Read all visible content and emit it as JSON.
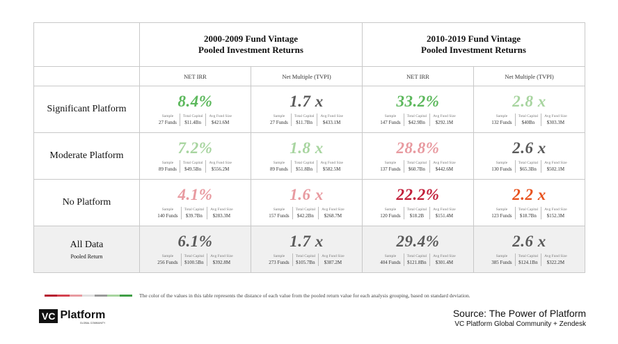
{
  "groups": [
    {
      "line1": "2000-2009 Fund Vintage",
      "line2": "Pooled Investment Returns"
    },
    {
      "line1": "2010-2019 Fund Vintage",
      "line2": "Pooled Investment Returns"
    }
  ],
  "subheaders": [
    "NET IRR",
    "Net Multiple (TVPI)",
    "NET IRR",
    "Net Multiple (TVPI)"
  ],
  "stat_labels": {
    "sample": "Sample",
    "capital": "Total Capital",
    "avg": "Avg Fund Size"
  },
  "colors": {
    "dark_green": "#5cb85c",
    "light_green": "#a8d5a0",
    "gray": "#5a5a5a",
    "light_red": "#e89aa0",
    "red": "#c21f3a",
    "orange": "#e8531f"
  },
  "rows": [
    {
      "label": "Significant Platform",
      "sub": "",
      "cells": [
        {
          "value": "8.4%",
          "tone": "dark_green",
          "sample": "27 Funds",
          "capital": "$11.4Bn",
          "avg": "$421.6M"
        },
        {
          "value": "1.7 x",
          "tone": "gray",
          "sample": "27 Funds",
          "capital": "$11.7Bn",
          "avg": "$433.1M"
        },
        {
          "value": "33.2%",
          "tone": "dark_green",
          "sample": "147 Funds",
          "capital": "$42.9Bn",
          "avg": "$292.1M"
        },
        {
          "value": "2.8 x",
          "tone": "light_green",
          "sample": "132 Funds",
          "capital": "$40Bn",
          "avg": "$303.3M"
        }
      ]
    },
    {
      "label": "Moderate Platform",
      "sub": "",
      "cells": [
        {
          "value": "7.2%",
          "tone": "light_green",
          "sample": "89 Funds",
          "capital": "$49.5Bn",
          "avg": "$556.2M"
        },
        {
          "value": "1.8 x",
          "tone": "light_green",
          "sample": "89 Funds",
          "capital": "$51.8Bn",
          "avg": "$582.5M"
        },
        {
          "value": "28.8%",
          "tone": "light_red",
          "sample": "137 Funds",
          "capital": "$60.7Bn",
          "avg": "$442.6M"
        },
        {
          "value": "2.6 x",
          "tone": "gray",
          "sample": "130 Funds",
          "capital": "$65.3Bn",
          "avg": "$502.1M"
        }
      ]
    },
    {
      "label": "No Platform",
      "sub": "",
      "cells": [
        {
          "value": "4.1%",
          "tone": "light_red",
          "sample": "140 Funds",
          "capital": "$39.7Bn",
          "avg": "$283.3M"
        },
        {
          "value": "1.6 x",
          "tone": "light_red",
          "sample": "157 Funds",
          "capital": "$42.2Bn",
          "avg": "$268.7M"
        },
        {
          "value": "22.2%",
          "tone": "red",
          "sample": "120 Funds",
          "capital": "$18.2B",
          "avg": "$151.4M"
        },
        {
          "value": "2.2 x",
          "tone": "orange",
          "sample": "123 Funds",
          "capital": "$18.7Bn",
          "avg": "$152.3M"
        }
      ]
    },
    {
      "label": "All Data",
      "sub": "Pooled Return",
      "cells": [
        {
          "value": "6.1%",
          "tone": "gray",
          "sample": "256 Funds",
          "capital": "$100.5Bn",
          "avg": "$392.8M"
        },
        {
          "value": "1.7 x",
          "tone": "gray",
          "sample": "273 Funds",
          "capital": "$105.7Bn",
          "avg": "$387.2M"
        },
        {
          "value": "29.4%",
          "tone": "gray",
          "sample": "404 Funds",
          "capital": "$121.8Bn",
          "avg": "$301.4M"
        },
        {
          "value": "2.6 x",
          "tone": "gray",
          "sample": "385 Funds",
          "capital": "$124.1Bn",
          "avg": "$322.2M"
        }
      ]
    }
  ],
  "legend": {
    "colors": [
      "#b5172f",
      "#d4424f",
      "#e89aa0",
      "#e0e0e0",
      "#9a9a9a",
      "#a8d5a0",
      "#3f9e45"
    ],
    "text": "The color of the values in this table represents the distance of each value from the pooled return value for each analysis grouping, based on standard deviation."
  },
  "logo": {
    "box": "VC",
    "name": "Platform",
    "sub": "GLOBAL COMMUNITY"
  },
  "source": {
    "title": "Source:  The Power of Platform",
    "sub": "VC Platform Global Community + Zendesk"
  }
}
